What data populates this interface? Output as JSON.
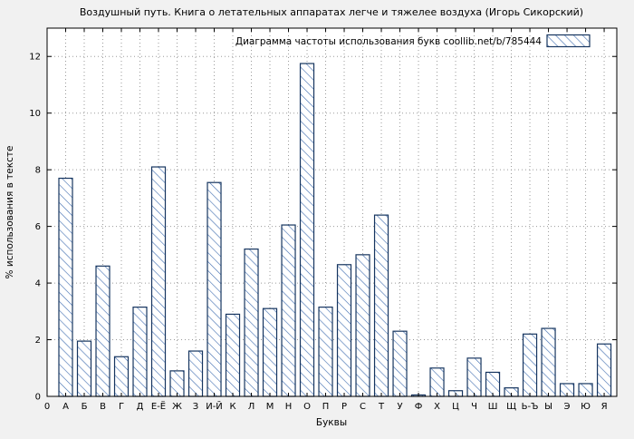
{
  "chart_data": {
    "type": "bar",
    "title": "Воздушный путь. Книга о летательных аппаратах легче и тяжелее воздуха (Игорь Сикорский)",
    "legend": "Диаграмма частоты использования букв coollib.net/b/785444",
    "xlabel": "Буквы",
    "ylabel": "% использования в тексте",
    "x_origin_label": "0",
    "ylim": [
      0,
      13
    ],
    "yticks": [
      0,
      2,
      4,
      6,
      8,
      10,
      12
    ],
    "grid": true,
    "legend_position": "top-right",
    "bar_edge_color": "#16355f",
    "hatch_color": "#3f6db0",
    "categories": [
      "А",
      "Б",
      "В",
      "Г",
      "Д",
      "Е-Ё",
      "Ж",
      "З",
      "И-Й",
      "К",
      "Л",
      "М",
      "Н",
      "О",
      "П",
      "Р",
      "С",
      "Т",
      "У",
      "Ф",
      "Х",
      "Ц",
      "Ч",
      "Ш",
      "Щ",
      "Ь-Ъ",
      "Ы",
      "Э",
      "Ю",
      "Я"
    ],
    "values": [
      7.7,
      1.95,
      4.6,
      1.4,
      3.15,
      8.1,
      0.9,
      1.6,
      7.55,
      2.9,
      5.2,
      3.1,
      6.05,
      11.75,
      3.15,
      4.65,
      5.0,
      6.4,
      2.3,
      0.05,
      1.0,
      0.2,
      1.35,
      0.85,
      0.3,
      2.2,
      2.4,
      0.45,
      0.45,
      1.85
    ]
  }
}
